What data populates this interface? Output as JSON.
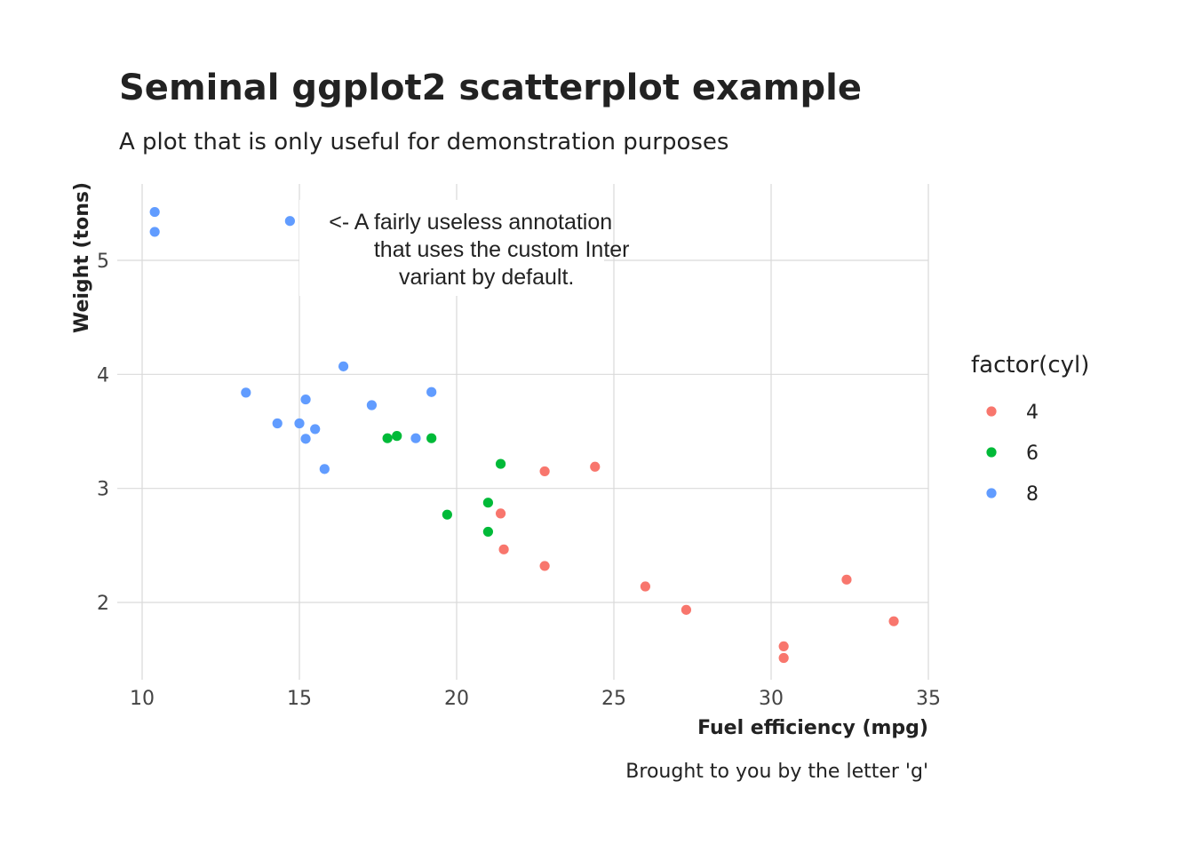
{
  "chart_data": {
    "type": "scatter",
    "title": "Seminal ggplot2 scatterplot example",
    "subtitle": "A plot that is only useful for demonstration purposes",
    "xlabel": "Fuel efficiency (mpg)",
    "ylabel": "Weight (tons)",
    "caption": "Brought to you by the letter 'g'",
    "xlim": [
      10,
      35
    ],
    "ylim": [
      1.35,
      5.7
    ],
    "x_ticks": [
      10,
      15,
      20,
      25,
      30,
      35
    ],
    "y_ticks": [
      2,
      3,
      4,
      5
    ],
    "grid": true,
    "legend": {
      "title": "factor(cyl)",
      "placement": "right",
      "entries": [
        {
          "label": "4",
          "color": "#F8766D"
        },
        {
          "label": "6",
          "color": "#00BA38"
        },
        {
          "label": "8",
          "color": "#619CFF"
        }
      ]
    },
    "annotation": {
      "lines": [
        "<- A fairly useless annotation",
        "that uses the custom Inter",
        "variant by default."
      ],
      "anchor": {
        "x": 20.5,
        "y": 5.1
      }
    },
    "series": [
      {
        "name": "4",
        "color": "#F8766D",
        "x": [
          22.8,
          24.4,
          22.8,
          32.4,
          30.4,
          33.9,
          21.5,
          27.3,
          26.0,
          30.4,
          21.4
        ],
        "y": [
          2.32,
          3.19,
          3.15,
          2.2,
          1.615,
          1.835,
          2.465,
          1.935,
          2.14,
          1.513,
          2.78
        ]
      },
      {
        "name": "6",
        "color": "#00BA38",
        "x": [
          21.0,
          21.0,
          21.4,
          18.1,
          19.2,
          17.8,
          19.7
        ],
        "y": [
          2.62,
          2.875,
          3.215,
          3.46,
          3.44,
          3.44,
          2.77
        ]
      },
      {
        "name": "8",
        "color": "#619CFF",
        "x": [
          18.7,
          14.3,
          16.4,
          17.3,
          15.2,
          10.4,
          10.4,
          14.7,
          15.5,
          15.2,
          13.3,
          19.2,
          15.8,
          15.0
        ],
        "y": [
          3.44,
          3.57,
          4.07,
          3.73,
          3.78,
          5.25,
          5.424,
          5.345,
          3.52,
          3.435,
          3.84,
          3.845,
          3.17,
          3.57
        ]
      }
    ]
  }
}
